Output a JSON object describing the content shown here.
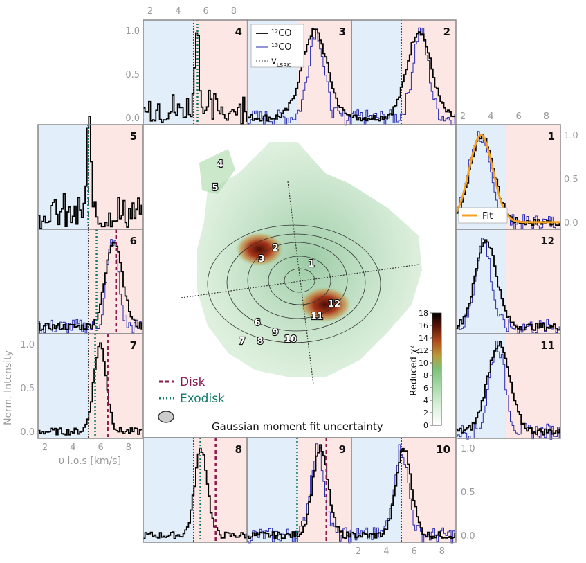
{
  "chart_data": {
    "type": "line",
    "title": "",
    "xlabel": "υ l.o.s [km/s]",
    "ylabel": "Norm. Intensity",
    "xlim": [
      1.5,
      9.0
    ],
    "ylim": [
      -0.08,
      1.12
    ],
    "x_ticks": [
      "2",
      "4",
      "6",
      "8"
    ],
    "y_ticks": [
      "0.0",
      "0.5",
      "1.0"
    ],
    "v_lsrk": 5.1,
    "legend": {
      "co12": "12CO",
      "co12_sup": "12",
      "co12_base": "CO",
      "co13": "13CO",
      "co13_sup": "13",
      "co13_base": "CO",
      "vlsrk": "vLSRK",
      "vlsrk_base": "v",
      "vlsrk_sub": "LSRK",
      "fit": "Fit"
    },
    "bottom_legend": {
      "disk": "Disk",
      "exodisk": "Exodisk",
      "beam": "Gaussian moment fit uncertainty"
    },
    "colorbar": {
      "label": "Reduced χ²",
      "min": 0,
      "max": 18,
      "ticks": [
        "0",
        "2",
        "4",
        "6",
        "8",
        "10",
        "12",
        "14",
        "16",
        "18"
      ]
    },
    "map_markers": [
      "1",
      "2",
      "3",
      "4",
      "5",
      "6",
      "7",
      "8",
      "9",
      "10",
      "11",
      "12"
    ],
    "panels": [
      {
        "id": "1",
        "co12_peak": 3.3,
        "co12_width": 0.85,
        "co13_peak": 3.1,
        "co13_width": 0.75,
        "fit_peak": 3.3,
        "fit_width": 0.85
      },
      {
        "id": "2",
        "co12_peak": 6.3,
        "co12_width": 0.85,
        "co13_peak": 6.4,
        "co13_width": 0.55
      },
      {
        "id": "3",
        "co12_peak": 6.3,
        "co12_width": 0.9,
        "co13_peak": 6.4,
        "co13_width": 0.55
      },
      {
        "id": "4",
        "co12_peak": 5.3,
        "co12_width": 0.15,
        "exodisk_v": 5.4
      },
      {
        "id": "5",
        "co12_peak": 5.1,
        "co12_width": 0.15,
        "exodisk_v": 5.1
      },
      {
        "id": "6",
        "co12_peak": 6.9,
        "co12_width": 0.6,
        "co13_peak": 6.8,
        "co13_width": 0.4,
        "disk_v": 7.1,
        "exodisk_v": 5.7
      },
      {
        "id": "7",
        "co12_peak": 5.9,
        "co12_width": 0.45,
        "disk_v": 6.5,
        "exodisk_v": 5.6
      },
      {
        "id": "8",
        "co12_peak": 5.6,
        "co12_width": 0.45,
        "disk_v": 6.7,
        "exodisk_v": 5.6
      },
      {
        "id": "9",
        "co12_peak": 6.7,
        "co12_width": 0.55,
        "co13_peak": 6.5,
        "co13_width": 0.5,
        "disk_v": 7.2,
        "exodisk_v": 5.1
      },
      {
        "id": "10",
        "co12_peak": 5.2,
        "co12_width": 0.55,
        "co13_peak": 5.0,
        "co13_width": 0.5
      },
      {
        "id": "11",
        "co12_peak": 4.5,
        "co12_width": 0.8,
        "co13_peak": 4.4,
        "co13_width": 0.55
      },
      {
        "id": "12",
        "co12_peak": 3.6,
        "co12_width": 0.75,
        "co13_peak": 3.4,
        "co13_width": 0.55
      }
    ],
    "bottom_ticks": [
      "2",
      "4",
      "6",
      "8"
    ]
  }
}
